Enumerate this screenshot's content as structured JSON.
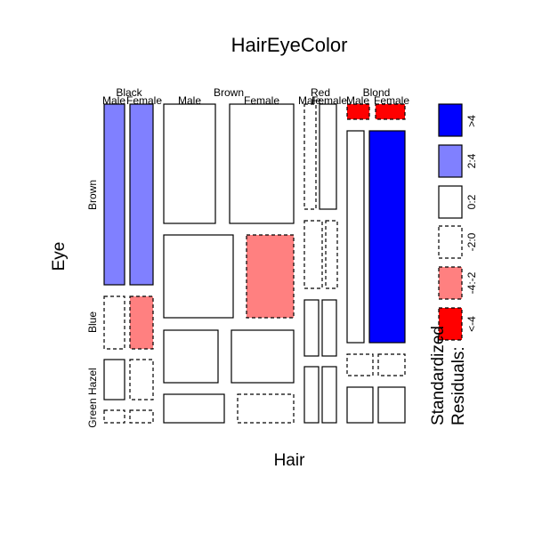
{
  "chart_data": {
    "type": "mosaic",
    "title": "HairEyeColor",
    "xlabel": "Hair",
    "ylabel": "Eye",
    "hair_levels": [
      "Black",
      "Brown",
      "Red",
      "Blond"
    ],
    "sex_levels": [
      "Male",
      "Female"
    ],
    "eye_levels": [
      "Brown",
      "Blue",
      "Hazel",
      "Green"
    ],
    "eye_axis_labels": [
      "Brown",
      "Blue",
      "Green Hazel"
    ],
    "residual_colors": {
      "gt4": "#0000ff",
      "2to4": "#8080ff",
      "0to2": "#ffffff",
      "m2to0": "#ffffff",
      "m4tom2": "#ff8080",
      "ltm4": "#ff0000"
    },
    "cells": [
      {
        "hair": "Black",
        "sex": "Male",
        "eye": "Brown",
        "residual_class": "2to4"
      },
      {
        "hair": "Black",
        "sex": "Female",
        "eye": "Brown",
        "residual_class": "2to4"
      },
      {
        "hair": "Black",
        "sex": "Male",
        "eye": "Blue",
        "residual_class": "m2to0"
      },
      {
        "hair": "Black",
        "sex": "Female",
        "eye": "Blue",
        "residual_class": "m4tom2"
      },
      {
        "hair": "Black",
        "sex": "Male",
        "eye": "Hazel",
        "residual_class": "0to2"
      },
      {
        "hair": "Black",
        "sex": "Female",
        "eye": "Hazel",
        "residual_class": "m2to0"
      },
      {
        "hair": "Black",
        "sex": "Male",
        "eye": "Green",
        "residual_class": "m2to0"
      },
      {
        "hair": "Black",
        "sex": "Female",
        "eye": "Green",
        "residual_class": "m2to0"
      },
      {
        "hair": "Brown",
        "sex": "Male",
        "eye": "Brown",
        "residual_class": "0to2"
      },
      {
        "hair": "Brown",
        "sex": "Female",
        "eye": "Brown",
        "residual_class": "0to2"
      },
      {
        "hair": "Brown",
        "sex": "Male",
        "eye": "Blue",
        "residual_class": "0to2"
      },
      {
        "hair": "Brown",
        "sex": "Female",
        "eye": "Blue",
        "residual_class": "m4tom2"
      },
      {
        "hair": "Brown",
        "sex": "Male",
        "eye": "Hazel",
        "residual_class": "0to2"
      },
      {
        "hair": "Brown",
        "sex": "Female",
        "eye": "Hazel",
        "residual_class": "0to2"
      },
      {
        "hair": "Brown",
        "sex": "Male",
        "eye": "Green",
        "residual_class": "0to2"
      },
      {
        "hair": "Brown",
        "sex": "Female",
        "eye": "Green",
        "residual_class": "m2to0"
      },
      {
        "hair": "Red",
        "sex": "Male",
        "eye": "Brown",
        "residual_class": "m2to0"
      },
      {
        "hair": "Red",
        "sex": "Female",
        "eye": "Brown",
        "residual_class": "0to2"
      },
      {
        "hair": "Red",
        "sex": "Male",
        "eye": "Blue",
        "residual_class": "m2to0"
      },
      {
        "hair": "Red",
        "sex": "Female",
        "eye": "Blue",
        "residual_class": "m2to0"
      },
      {
        "hair": "Red",
        "sex": "Male",
        "eye": "Hazel",
        "residual_class": "0to2"
      },
      {
        "hair": "Red",
        "sex": "Female",
        "eye": "Hazel",
        "residual_class": "0to2"
      },
      {
        "hair": "Red",
        "sex": "Male",
        "eye": "Green",
        "residual_class": "0to2"
      },
      {
        "hair": "Red",
        "sex": "Female",
        "eye": "Green",
        "residual_class": "0to2"
      },
      {
        "hair": "Blond",
        "sex": "Male",
        "eye": "Brown",
        "residual_class": "ltm4"
      },
      {
        "hair": "Blond",
        "sex": "Female",
        "eye": "Brown",
        "residual_class": "ltm4"
      },
      {
        "hair": "Blond",
        "sex": "Male",
        "eye": "Blue",
        "residual_class": "0to2"
      },
      {
        "hair": "Blond",
        "sex": "Female",
        "eye": "Blue",
        "residual_class": "gt4"
      },
      {
        "hair": "Blond",
        "sex": "Male",
        "eye": "Hazel",
        "residual_class": "m2to0"
      },
      {
        "hair": "Blond",
        "sex": "Female",
        "eye": "Hazel",
        "residual_class": "m2to0"
      },
      {
        "hair": "Blond",
        "sex": "Male",
        "eye": "Green",
        "residual_class": "0to2"
      },
      {
        "hair": "Blond",
        "sex": "Female",
        "eye": "Green",
        "residual_class": "0to2"
      }
    ],
    "legend": {
      "title_line1": "Standardized",
      "title_line2": "Residuals:",
      "entries": [
        {
          "label": ">4",
          "class": "gt4"
        },
        {
          "label": "2:4",
          "class": "2to4"
        },
        {
          "label": "0:2",
          "class": "0to2"
        },
        {
          "label": "-2:0",
          "class": "m2to0"
        },
        {
          "label": "-4:-2",
          "class": "m4tom2"
        },
        {
          "label": "<-4",
          "class": "ltm4"
        }
      ]
    }
  }
}
